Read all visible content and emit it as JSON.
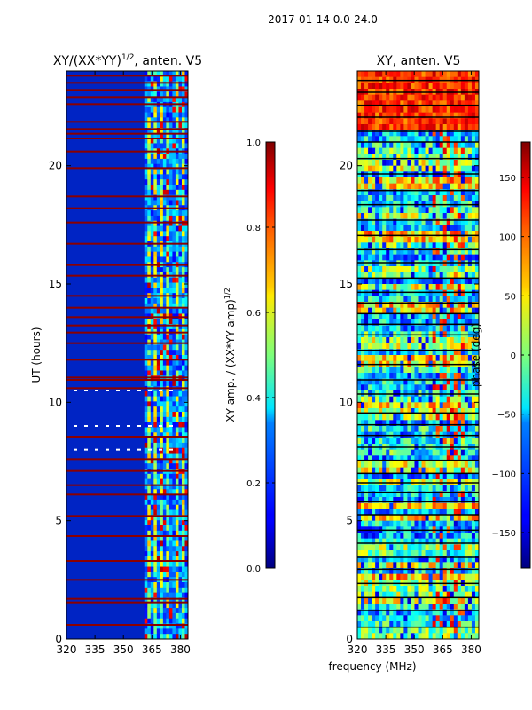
{
  "suptitle": "2017-01-14 0.0-24.0",
  "xlabel_shared": "frequency (MHz)",
  "chart_data": [
    {
      "type": "heatmap",
      "title_main": "XY/(XX*YY)",
      "title_sup": "1/2",
      "title_tail": ", anten. V5",
      "ylabel": "UT (hours)",
      "xlim": [
        320,
        384
      ],
      "ylim": [
        0,
        24
      ],
      "x_ticks": [
        320,
        335,
        350,
        365,
        380
      ],
      "y_ticks": [
        0,
        5,
        10,
        15,
        20
      ],
      "colorbar": {
        "label_main": "XY amp. / (XX*YY amp)",
        "label_sup": "1/2",
        "range": [
          0.0,
          1.0
        ],
        "ticks": [
          0.0,
          0.2,
          0.4,
          0.6,
          0.8,
          1.0
        ],
        "tick_labels": [
          "0.0",
          "0.2",
          "0.4",
          "0.6",
          "0.8",
          "1.0"
        ],
        "colormap": "jet"
      },
      "features": {
        "background_value": 0.08,
        "active_band_mhz": [
          361,
          384
        ],
        "saturated_rows_ut": [
          0.6,
          1.55,
          1.7,
          2.5,
          3.3,
          4.35,
          5.2,
          6.1,
          6.5,
          7.1,
          7.6,
          8.55,
          10.6,
          10.95,
          11.05,
          11.8,
          12.5,
          12.95,
          13.25,
          13.6,
          14.0,
          14.5,
          15.35,
          15.8,
          16.7,
          17.6,
          18.2,
          18.7,
          19.9,
          20.6,
          21.15,
          21.35,
          21.55,
          21.85,
          22.6,
          22.9,
          23.2,
          23.5,
          23.8
        ]
      }
    },
    {
      "type": "heatmap",
      "title_main": "XY, anten. V5",
      "ylabel": "",
      "xlim": [
        320,
        384
      ],
      "ylim": [
        0,
        24
      ],
      "x_ticks": [
        320,
        335,
        350,
        365,
        380
      ],
      "y_ticks": [
        0,
        5,
        10,
        15,
        20
      ],
      "colorbar": {
        "label_main": "phase (deg)",
        "range": [
          -180,
          180
        ],
        "ticks": [
          -150,
          -100,
          -50,
          0,
          50,
          100,
          150
        ],
        "tick_labels": [
          "−150",
          "−100",
          "−50",
          "0",
          "50",
          "100",
          "150"
        ],
        "colormap": "jet"
      },
      "features": {
        "warm_block_ut": [
          21.4,
          24.0
        ],
        "black_rows_ut": [
          0.5,
          1.2,
          1.75,
          2.35,
          2.95,
          3.45,
          4.05,
          4.6,
          5.25,
          5.8,
          6.2,
          6.6,
          7.0,
          7.55,
          8.1,
          8.6,
          9.05,
          9.55,
          10.35,
          10.95,
          11.6,
          12.2,
          12.85,
          13.3,
          13.75,
          14.2,
          14.65,
          15.25,
          15.9,
          16.45,
          17.05,
          17.7,
          18.35,
          18.95,
          19.65,
          20.3,
          21.0,
          21.45,
          22.05,
          22.55,
          23.1,
          23.6
        ]
      }
    }
  ]
}
